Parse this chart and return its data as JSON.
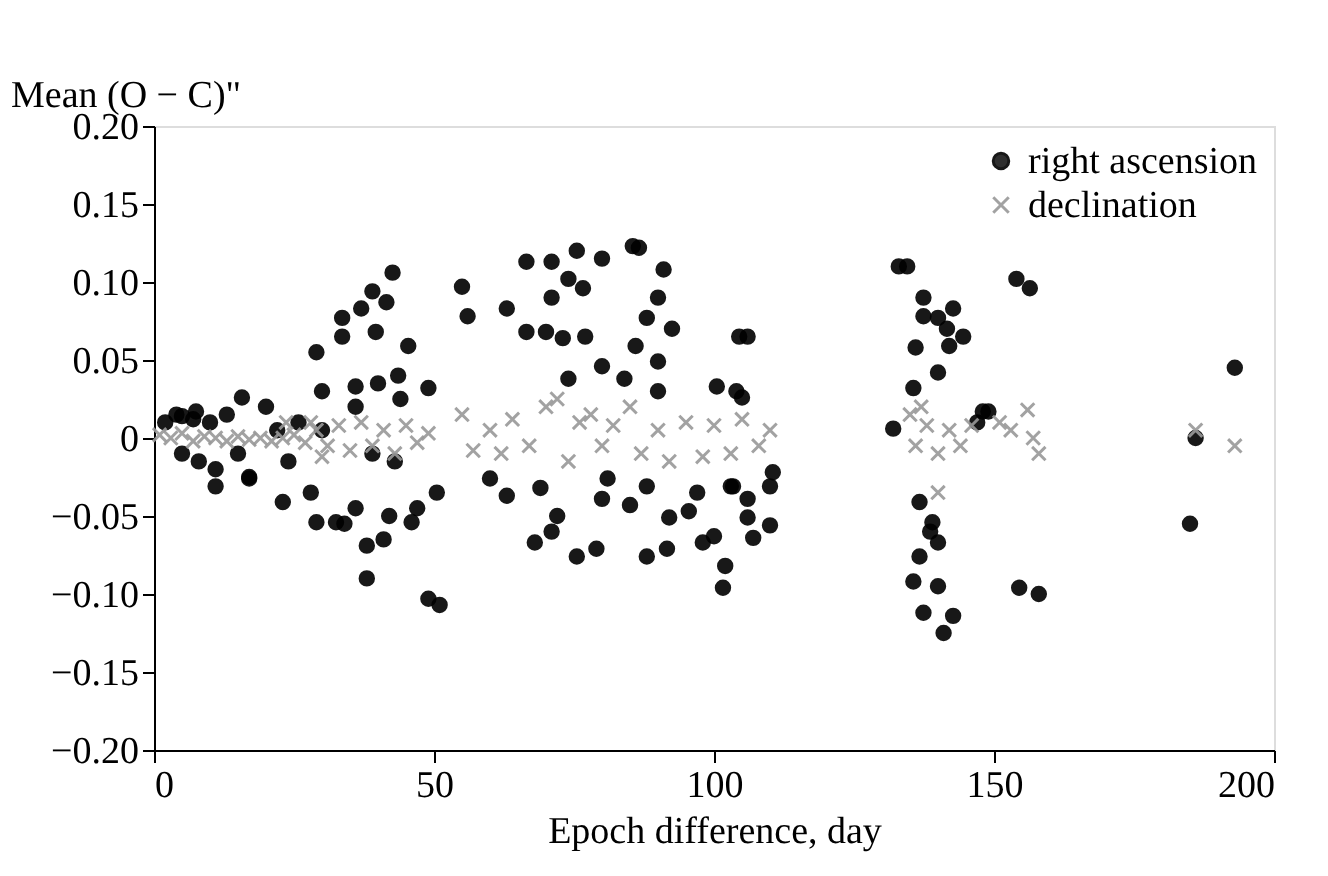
{
  "chart_data": {
    "type": "scatter",
    "xlabel": "Epoch difference, day",
    "ylabel": "Mean (O − C)\"",
    "xlim": [
      0,
      200
    ],
    "xticks": [
      0,
      50,
      100,
      150,
      200
    ],
    "ylim": [
      -0.2,
      0.2
    ],
    "yticks": [
      {
        "value": -0.2,
        "label": "−0.20"
      },
      {
        "value": -0.15,
        "label": "−0.15"
      },
      {
        "value": -0.1,
        "label": "−0.10"
      },
      {
        "value": -0.05,
        "label": "−0.05"
      },
      {
        "value": 0,
        "label": "0"
      },
      {
        "value": 0.05,
        "label": "0.05"
      },
      {
        "value": 0.1,
        "label": "0.10"
      },
      {
        "value": 0.15,
        "label": "0.15"
      },
      {
        "value": 0.2,
        "label": "0.20"
      }
    ],
    "grid": false,
    "legend": "top right",
    "series": [
      {
        "name": "right ascension",
        "color": "#000000",
        "marker": "circle",
        "x": [
          2,
          4,
          5,
          7,
          8,
          10,
          11,
          13,
          15,
          17,
          20,
          22,
          24,
          28,
          30,
          5,
          7.5,
          15.7,
          25.8,
          29,
          33.6,
          33.6,
          37,
          39,
          42.6,
          41.5,
          39.6,
          45.4,
          30,
          36,
          43.6,
          49,
          36,
          40,
          44,
          41,
          34,
          39,
          43,
          47,
          23,
          17,
          11,
          29,
          32.5,
          36,
          38,
          38,
          42,
          46,
          49,
          51,
          50.5,
          55,
          56,
          63,
          66.5,
          71,
          75.5,
          80,
          85.5,
          86.6,
          91,
          90,
          74,
          76.6,
          71,
          66.5,
          70,
          73,
          77,
          80,
          74,
          84,
          86,
          88,
          92.5,
          90,
          90,
          100.5,
          104,
          104.5,
          60,
          63,
          69,
          68,
          71,
          72,
          75.5,
          79,
          80,
          85,
          88,
          92,
          95.5,
          88,
          91.6,
          98,
          100,
          102,
          101.6,
          97,
          103,
          81,
          103.4,
          106,
          110,
          106,
          110,
          107,
          110.5,
          105,
          106,
          133,
          134.5,
          154,
          156.4,
          137.4,
          137.4,
          140,
          142.7,
          141.6,
          144.5,
          142,
          136,
          140,
          135.6,
          148,
          147,
          132,
          149,
          136.7,
          139,
          138.6,
          140,
          136.7,
          135.6,
          140,
          137.4,
          142.7,
          141,
          154.5,
          158,
          186,
          185,
          193
        ],
        "values": [
          0.01,
          0.015,
          -0.01,
          0.012,
          -0.015,
          0.01,
          -0.02,
          0.015,
          -0.01,
          -0.025,
          0.02,
          0.005,
          -0.015,
          -0.035,
          0.005,
          0.014,
          0.017,
          0.026,
          0.01,
          0.055,
          0.077,
          0.065,
          0.083,
          0.094,
          0.106,
          0.087,
          0.068,
          0.059,
          0.03,
          0.033,
          0.04,
          0.032,
          0.02,
          0.035,
          0.025,
          -0.065,
          -0.055,
          -0.01,
          -0.015,
          -0.045,
          -0.041,
          -0.026,
          -0.031,
          -0.054,
          -0.054,
          -0.045,
          -0.069,
          -0.09,
          -0.05,
          -0.054,
          -0.103,
          -0.107,
          -0.035,
          0.097,
          0.078,
          0.083,
          0.113,
          0.113,
          0.12,
          0.115,
          0.123,
          0.122,
          0.108,
          0.09,
          0.102,
          0.096,
          0.09,
          0.068,
          0.068,
          0.064,
          0.065,
          0.046,
          0.038,
          0.038,
          0.059,
          0.077,
          0.07,
          0.049,
          0.03,
          0.033,
          0.03,
          0.065,
          -0.026,
          -0.037,
          -0.032,
          -0.067,
          -0.06,
          -0.05,
          -0.076,
          -0.071,
          -0.039,
          -0.043,
          -0.031,
          -0.051,
          -0.047,
          -0.076,
          -0.071,
          -0.067,
          -0.063,
          -0.082,
          -0.096,
          -0.035,
          -0.031,
          -0.026,
          -0.031,
          -0.039,
          -0.031,
          -0.051,
          -0.056,
          -0.064,
          -0.022,
          0.026,
          0.065,
          0.11,
          0.11,
          0.102,
          0.096,
          0.09,
          0.078,
          0.077,
          0.083,
          0.07,
          0.065,
          0.059,
          0.058,
          0.042,
          0.032,
          0.017,
          0.01,
          0.006,
          0.017,
          -0.041,
          -0.054,
          -0.06,
          -0.067,
          -0.076,
          -0.092,
          -0.095,
          -0.112,
          -0.114,
          -0.125,
          -0.096,
          -0.1,
          0,
          -0.055,
          0.045
        ]
      },
      {
        "name": "declination",
        "color": "#999999",
        "marker": "cross",
        "x": [
          1,
          3,
          5,
          7,
          9,
          11,
          13,
          15,
          17,
          19,
          21,
          23,
          25,
          27,
          29,
          31,
          33,
          35,
          37,
          39,
          41,
          43,
          45,
          47,
          49,
          28,
          30,
          23.6,
          55,
          57,
          60,
          62,
          64,
          67,
          70,
          72,
          74,
          76,
          78,
          80,
          82,
          85,
          87,
          90,
          92,
          95,
          98,
          100,
          103,
          105,
          108,
          110,
          135,
          136,
          138,
          140,
          142,
          144,
          146,
          137,
          140,
          151,
          153,
          156,
          158,
          157,
          186,
          193
        ],
        "values": [
          0.002,
          0,
          0.003,
          -0.002,
          0.001,
          0,
          -0.002,
          0.001,
          -0.001,
          0,
          -0.002,
          0,
          0.002,
          -0.003,
          0.005,
          -0.005,
          0.008,
          -0.008,
          0.01,
          -0.005,
          0.005,
          -0.01,
          0.008,
          -0.003,
          0.003,
          0.01,
          -0.012,
          0.01,
          0.015,
          -0.008,
          0.005,
          -0.01,
          0.012,
          -0.005,
          0.02,
          0.025,
          -0.015,
          0.01,
          0.015,
          -0.005,
          0.008,
          0.02,
          -0.01,
          0.005,
          -0.015,
          0.01,
          -0.012,
          0.008,
          -0.01,
          0.012,
          -0.005,
          0.005,
          0.015,
          -0.005,
          0.008,
          -0.01,
          0.005,
          -0.005,
          0.008,
          0.02,
          -0.035,
          0.01,
          0.005,
          0.018,
          -0.01,
          0,
          0.005,
          -0.005
        ]
      }
    ]
  }
}
